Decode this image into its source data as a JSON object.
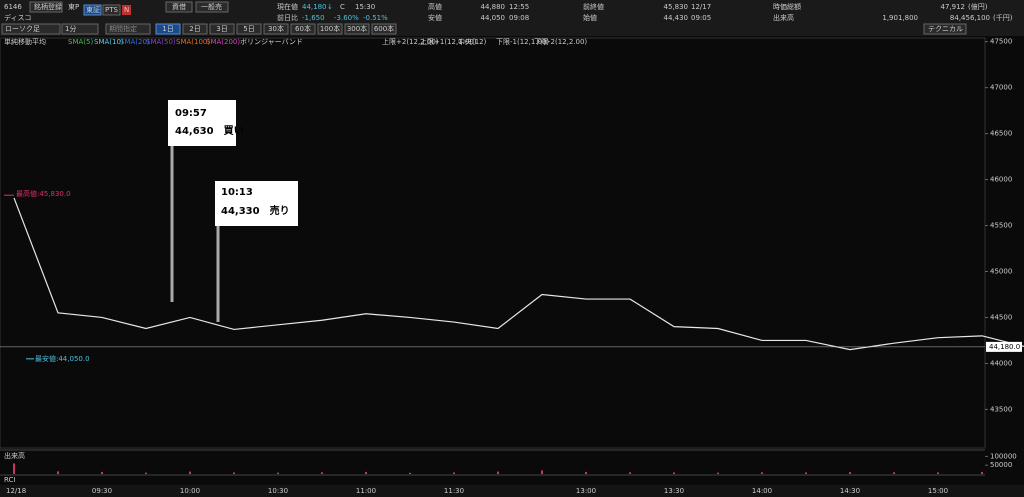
{
  "header": {
    "code": "6146",
    "register": "銘柄登録",
    "market": "東P",
    "exchange": "東証",
    "pts": "PTS",
    "news": "N",
    "margin": "資借",
    "general": "一般売",
    "name": "ディスコ",
    "price_label": "現在値",
    "price": "44,180",
    "arrow": "↓",
    "close_flag": "C",
    "price_time": "15:30",
    "change_label": "前日比",
    "change": "-1,650",
    "change_pct": "-3.60%",
    "change_pct2": "-0.51%",
    "high_label": "高値",
    "high": "44,880",
    "high_time": "12:55",
    "low_label": "安値",
    "low": "44,050",
    "low_time": "09:08",
    "prev_label": "前終値",
    "prev": "45,830",
    "prev_date": "12/17",
    "open_label": "始値",
    "open": "44,430",
    "open_time": "09:05",
    "mcap_label": "時価総額",
    "mcap": "47,912",
    "mcap_unit": "(億円)",
    "volume_label": "出来高",
    "volume": "1,901,800",
    "turnover": "84,456,100",
    "turnover_unit": "(千円)"
  },
  "toolbar": {
    "chart_type": "ローソク足",
    "interval": "1分",
    "period": "期間指定",
    "ranges": [
      "1日",
      "2日",
      "3日",
      "5日",
      "30本",
      "60本",
      "100本",
      "300本",
      "600本"
    ],
    "technical": "テクニカル"
  },
  "legend": {
    "sma": "単純移動平均",
    "items": [
      "SMA(5)",
      "SMA(10)",
      "SMA(20)",
      "SMA(50)",
      "SMA(100)",
      "SMA(200)"
    ],
    "bollinger": "ボリンジャーバンド",
    "bands": [
      "上限+2(12,2.00)",
      "上限+1(12,1.00)",
      "中央(12)",
      "下限-1(12,1.00)",
      "下限-2(12,2.00)"
    ]
  },
  "chart_data": {
    "type": "line",
    "categories": [
      "12/18",
      null,
      "09:30",
      null,
      "10:00",
      null,
      "10:30",
      null,
      "11:00",
      null,
      "11:30",
      null,
      null,
      "13:00",
      null,
      "13:30",
      null,
      "14:00",
      null,
      "14:30",
      null,
      "15:00",
      null,
      null
    ],
    "series": [
      {
        "name": "終値",
        "color": "#e8e8e8",
        "values": [
          45800,
          44550,
          44500,
          44380,
          44500,
          44370,
          44420,
          44470,
          44540,
          44500,
          44450,
          44380,
          44750,
          44700,
          44700,
          44400,
          44380,
          44250,
          44250,
          44150,
          44220,
          44280,
          44300,
          44180
        ]
      }
    ],
    "ylim": [
      43080,
      47540
    ],
    "yticks": [
      43500,
      44000,
      44500,
      45000,
      45500,
      46000,
      46500,
      47000,
      47500
    ],
    "last_price": {
      "value": 44180,
      "label": "44,180.0"
    },
    "high_mark": {
      "value": 45830,
      "label": "最高値:45,830.0"
    },
    "low_mark": {
      "value": 44050,
      "label": "最安値:44,050.0"
    },
    "annotations": [
      {
        "time": "09:57",
        "text": "44,630　買い"
      },
      {
        "time": "10:13",
        "text": "44,330　売り"
      }
    ],
    "volume": {
      "title": "出来高",
      "values": [
        60000,
        15000,
        12000,
        8000,
        14000,
        9000,
        8000,
        10000,
        12000,
        7000,
        9000,
        14000,
        20000,
        12000,
        10000,
        9000,
        8000,
        10000,
        9000,
        11000,
        10000,
        9000,
        12000,
        100000
      ],
      "color": "#d0306a",
      "ylim": [
        0,
        125000
      ],
      "yticks": [
        50000,
        100000
      ]
    },
    "rci_label": "RCI"
  }
}
